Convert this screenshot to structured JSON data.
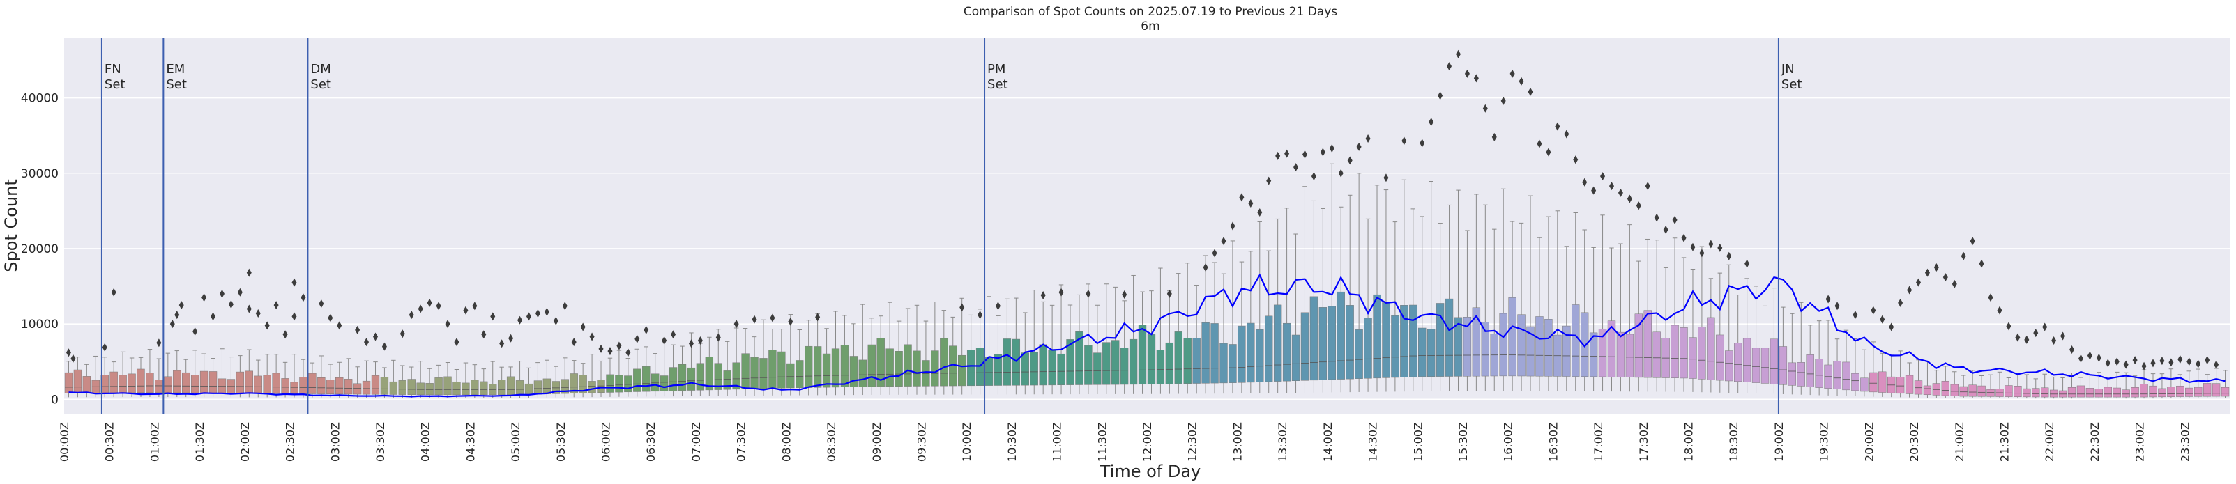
{
  "chart_data": {
    "type": "boxplot",
    "title": "Comparison of Spot Counts on 2025.07.19 to Previous 21 Days",
    "subtitle": "6m",
    "xlabel": "Time of Day",
    "ylabel": "Spot Count",
    "ylim": [
      -2000,
      48000
    ],
    "yticks": [
      0,
      10000,
      20000,
      30000,
      40000
    ],
    "ytick_labels": [
      "0",
      "10000",
      "20000",
      "30000",
      "40000"
    ],
    "xtick_labels": [
      "00:00Z",
      "00:30Z",
      "01:00Z",
      "01:30Z",
      "02:00Z",
      "02:30Z",
      "03:00Z",
      "03:30Z",
      "04:00Z",
      "04:30Z",
      "05:00Z",
      "05:30Z",
      "06:00Z",
      "06:30Z",
      "07:00Z",
      "07:30Z",
      "08:00Z",
      "08:30Z",
      "09:00Z",
      "09:30Z",
      "10:00Z",
      "10:30Z",
      "11:00Z",
      "11:30Z",
      "12:00Z",
      "12:30Z",
      "13:00Z",
      "13:30Z",
      "14:00Z",
      "14:30Z",
      "15:00Z",
      "15:30Z",
      "16:00Z",
      "16:30Z",
      "17:00Z",
      "17:30Z",
      "18:00Z",
      "18:30Z",
      "19:00Z",
      "19:30Z",
      "20:00Z",
      "20:30Z",
      "21:00Z",
      "21:30Z",
      "22:00Z",
      "22:30Z",
      "23:00Z",
      "23:30Z"
    ],
    "bins_per_hour": 10,
    "grid": true,
    "legend": "none",
    "colors": {
      "background": "#eaeaf2",
      "grid": "#ffffff",
      "line": "#0000ff",
      "marker_line": "#3d5fb0",
      "outlier": "#3c3c3c",
      "whisker": "#8a8a8a",
      "box_night": "#c98a86",
      "box_morning": "#97a27a",
      "box_day": "#6f9e6c",
      "box_midday": "#4e9a86",
      "box_afternoon": "#5f96b0",
      "box_evening": "#9fa6d6",
      "box_dusk": "#c79fd4",
      "box_late": "#d98fbf"
    },
    "markers": [
      {
        "label": "FN\nSet",
        "time": "00:25Z"
      },
      {
        "label": "EM\nSet",
        "time": "01:06Z"
      },
      {
        "label": "DM\nSet",
        "time": "02:42Z"
      },
      {
        "label": "PM\nSet",
        "time": "10:12Z"
      },
      {
        "label": "JN\nSet",
        "time": "19:00Z"
      }
    ],
    "today_line_hourly": [
      {
        "t": "00:00Z",
        "v": 900
      },
      {
        "t": "01:00Z",
        "v": 700
      },
      {
        "t": "02:00Z",
        "v": 800
      },
      {
        "t": "03:00Z",
        "v": 500
      },
      {
        "t": "04:00Z",
        "v": 400
      },
      {
        "t": "05:00Z",
        "v": 500
      },
      {
        "t": "06:00Z",
        "v": 1500
      },
      {
        "t": "07:00Z",
        "v": 2000
      },
      {
        "t": "08:00Z",
        "v": 1200
      },
      {
        "t": "09:00Z",
        "v": 2800
      },
      {
        "t": "10:00Z",
        "v": 4500
      },
      {
        "t": "11:00Z",
        "v": 7000
      },
      {
        "t": "12:00Z",
        "v": 9500
      },
      {
        "t": "13:00Z",
        "v": 14500
      },
      {
        "t": "14:00Z",
        "v": 15000
      },
      {
        "t": "15:00Z",
        "v": 11000
      },
      {
        "t": "16:00Z",
        "v": 9000
      },
      {
        "t": "17:00Z",
        "v": 8000
      },
      {
        "t": "18:00Z",
        "v": 12500
      },
      {
        "t": "19:00Z",
        "v": 15500
      },
      {
        "t": "20:00Z",
        "v": 7000
      },
      {
        "t": "21:00Z",
        "v": 4000
      },
      {
        "t": "22:00Z",
        "v": 3500
      },
      {
        "t": "23:00Z",
        "v": 2800
      },
      {
        "t": "23:54Z",
        "v": 2400
      }
    ],
    "median_hourly": [
      {
        "t": "00:00Z",
        "v": 1600
      },
      {
        "t": "01:00Z",
        "v": 1800
      },
      {
        "t": "02:00Z",
        "v": 1700
      },
      {
        "t": "03:00Z",
        "v": 1500
      },
      {
        "t": "04:00Z",
        "v": 1300
      },
      {
        "t": "05:00Z",
        "v": 1300
      },
      {
        "t": "06:00Z",
        "v": 1800
      },
      {
        "t": "07:00Z",
        "v": 2500
      },
      {
        "t": "08:00Z",
        "v": 3000
      },
      {
        "t": "09:00Z",
        "v": 3300
      },
      {
        "t": "10:00Z",
        "v": 3500
      },
      {
        "t": "11:00Z",
        "v": 3700
      },
      {
        "t": "12:00Z",
        "v": 3900
      },
      {
        "t": "13:00Z",
        "v": 4200
      },
      {
        "t": "14:00Z",
        "v": 5000
      },
      {
        "t": "15:00Z",
        "v": 5800
      },
      {
        "t": "16:00Z",
        "v": 5900
      },
      {
        "t": "17:00Z",
        "v": 5700
      },
      {
        "t": "18:00Z",
        "v": 5400
      },
      {
        "t": "19:00Z",
        "v": 4000
      },
      {
        "t": "20:00Z",
        "v": 2200
      },
      {
        "t": "21:00Z",
        "v": 1000
      },
      {
        "t": "22:00Z",
        "v": 700
      },
      {
        "t": "23:00Z",
        "v": 700
      },
      {
        "t": "23:54Z",
        "v": 800
      }
    ],
    "box_top_hourly": [
      {
        "t": "00:00Z",
        "v": 3200
      },
      {
        "t": "01:00Z",
        "v": 3400
      },
      {
        "t": "02:00Z",
        "v": 3300
      },
      {
        "t": "03:00Z",
        "v": 2700
      },
      {
        "t": "04:00Z",
        "v": 2500
      },
      {
        "t": "05:00Z",
        "v": 2400
      },
      {
        "t": "06:00Z",
        "v": 3000
      },
      {
        "t": "07:00Z",
        "v": 4500
      },
      {
        "t": "08:00Z",
        "v": 6000
      },
      {
        "t": "09:00Z",
        "v": 6800
      },
      {
        "t": "10:00Z",
        "v": 6500
      },
      {
        "t": "11:00Z",
        "v": 7000
      },
      {
        "t": "12:00Z",
        "v": 8000
      },
      {
        "t": "13:00Z",
        "v": 9000
      },
      {
        "t": "14:00Z",
        "v": 12500
      },
      {
        "t": "15:00Z",
        "v": 11500
      },
      {
        "t": "16:00Z",
        "v": 11000
      },
      {
        "t": "17:00Z",
        "v": 10000
      },
      {
        "t": "18:00Z",
        "v": 9500
      },
      {
        "t": "19:00Z",
        "v": 6500
      },
      {
        "t": "20:00Z",
        "v": 3500
      },
      {
        "t": "21:00Z",
        "v": 1800
      },
      {
        "t": "22:00Z",
        "v": 1400
      },
      {
        "t": "23:00Z",
        "v": 1600
      },
      {
        "t": "23:54Z",
        "v": 1800
      }
    ],
    "box_bottom_hourly": [
      {
        "t": "00:00Z",
        "v": 800
      },
      {
        "t": "01:00Z",
        "v": 900
      },
      {
        "t": "02:00Z",
        "v": 800
      },
      {
        "t": "03:00Z",
        "v": 700
      },
      {
        "t": "04:00Z",
        "v": 600
      },
      {
        "t": "05:00Z",
        "v": 600
      },
      {
        "t": "06:00Z",
        "v": 900
      },
      {
        "t": "07:00Z",
        "v": 1200
      },
      {
        "t": "08:00Z",
        "v": 1500
      },
      {
        "t": "09:00Z",
        "v": 1700
      },
      {
        "t": "10:00Z",
        "v": 1800
      },
      {
        "t": "11:00Z",
        "v": 1900
      },
      {
        "t": "12:00Z",
        "v": 2000
      },
      {
        "t": "13:00Z",
        "v": 2200
      },
      {
        "t": "14:00Z",
        "v": 2600
      },
      {
        "t": "15:00Z",
        "v": 3000
      },
      {
        "t": "16:00Z",
        "v": 3100
      },
      {
        "t": "17:00Z",
        "v": 3000
      },
      {
        "t": "18:00Z",
        "v": 2800
      },
      {
        "t": "19:00Z",
        "v": 2000
      },
      {
        "t": "20:00Z",
        "v": 1000
      },
      {
        "t": "21:00Z",
        "v": 400
      },
      {
        "t": "22:00Z",
        "v": 300
      },
      {
        "t": "23:00Z",
        "v": 300
      },
      {
        "t": "23:54Z",
        "v": 400
      }
    ],
    "whisker_top_hourly": [
      {
        "t": "00:00Z",
        "v": 5000
      },
      {
        "t": "01:00Z",
        "v": 6000
      },
      {
        "t": "02:00Z",
        "v": 6000
      },
      {
        "t": "03:00Z",
        "v": 5000
      },
      {
        "t": "04:00Z",
        "v": 4500
      },
      {
        "t": "05:00Z",
        "v": 4500
      },
      {
        "t": "06:00Z",
        "v": 5500
      },
      {
        "t": "07:00Z",
        "v": 8000
      },
      {
        "t": "08:00Z",
        "v": 10000
      },
      {
        "t": "09:00Z",
        "v": 11500
      },
      {
        "t": "10:00Z",
        "v": 12000
      },
      {
        "t": "11:00Z",
        "v": 13500
      },
      {
        "t": "12:00Z",
        "v": 15000
      },
      {
        "t": "13:00Z",
        "v": 19000
      },
      {
        "t": "14:00Z",
        "v": 28000
      },
      {
        "t": "15:00Z",
        "v": 26000
      },
      {
        "t": "16:00Z",
        "v": 25000
      },
      {
        "t": "17:00Z",
        "v": 22000
      },
      {
        "t": "18:00Z",
        "v": 19000
      },
      {
        "t": "19:00Z",
        "v": 13000
      },
      {
        "t": "20:00Z",
        "v": 7000
      },
      {
        "t": "21:00Z",
        "v": 3500
      },
      {
        "t": "22:00Z",
        "v": 3000
      },
      {
        "t": "23:00Z",
        "v": 3500
      },
      {
        "t": "23:54Z",
        "v": 3800
      }
    ],
    "outliers": [
      {
        "t": "00:00Z",
        "v": 6200
      },
      {
        "t": "00:03Z",
        "v": 5400
      },
      {
        "t": "00:30Z",
        "v": 14200
      },
      {
        "t": "00:24Z",
        "v": 6900
      },
      {
        "t": "01:00Z",
        "v": 7500
      },
      {
        "t": "01:09Z",
        "v": 10000
      },
      {
        "t": "01:12Z",
        "v": 11200
      },
      {
        "t": "01:15Z",
        "v": 12500
      },
      {
        "t": "01:24Z",
        "v": 9000
      },
      {
        "t": "01:30Z",
        "v": 13500
      },
      {
        "t": "01:36Z",
        "v": 11000
      },
      {
        "t": "01:42Z",
        "v": 14000
      },
      {
        "t": "01:48Z",
        "v": 12600
      },
      {
        "t": "01:54Z",
        "v": 14200
      },
      {
        "t": "02:00Z",
        "v": 16800
      },
      {
        "t": "02:00Z",
        "v": 12000
      },
      {
        "t": "02:06Z",
        "v": 11400
      },
      {
        "t": "02:12Z",
        "v": 9800
      },
      {
        "t": "02:18Z",
        "v": 12500
      },
      {
        "t": "02:24Z",
        "v": 8600
      },
      {
        "t": "02:30Z",
        "v": 15500
      },
      {
        "t": "02:30Z",
        "v": 11000
      },
      {
        "t": "02:36Z",
        "v": 13500
      },
      {
        "t": "02:48Z",
        "v": 12700
      },
      {
        "t": "02:54Z",
        "v": 10800
      },
      {
        "t": "03:00Z",
        "v": 9800
      },
      {
        "t": "03:12Z",
        "v": 9200
      },
      {
        "t": "03:18Z",
        "v": 7600
      },
      {
        "t": "03:24Z",
        "v": 8300
      },
      {
        "t": "03:30Z",
        "v": 7000
      },
      {
        "t": "03:42Z",
        "v": 8700
      },
      {
        "t": "03:48Z",
        "v": 11200
      },
      {
        "t": "03:54Z",
        "v": 12000
      },
      {
        "t": "04:00Z",
        "v": 12800
      },
      {
        "t": "04:06Z",
        "v": 12400
      },
      {
        "t": "04:12Z",
        "v": 10000
      },
      {
        "t": "04:18Z",
        "v": 7600
      },
      {
        "t": "04:24Z",
        "v": 11800
      },
      {
        "t": "04:30Z",
        "v": 12400
      },
      {
        "t": "04:36Z",
        "v": 8600
      },
      {
        "t": "04:42Z",
        "v": 11000
      },
      {
        "t": "04:48Z",
        "v": 7400
      },
      {
        "t": "04:54Z",
        "v": 8100
      },
      {
        "t": "05:00Z",
        "v": 10500
      },
      {
        "t": "05:06Z",
        "v": 11000
      },
      {
        "t": "05:12Z",
        "v": 11400
      },
      {
        "t": "05:18Z",
        "v": 11600
      },
      {
        "t": "05:24Z",
        "v": 10400
      },
      {
        "t": "05:30Z",
        "v": 12400
      },
      {
        "t": "05:36Z",
        "v": 7600
      },
      {
        "t": "05:42Z",
        "v": 9600
      },
      {
        "t": "05:48Z",
        "v": 8300
      },
      {
        "t": "05:54Z",
        "v": 6700
      },
      {
        "t": "06:00Z",
        "v": 6400
      },
      {
        "t": "06:06Z",
        "v": 7100
      },
      {
        "t": "06:12Z",
        "v": 6200
      },
      {
        "t": "06:18Z",
        "v": 8000
      },
      {
        "t": "06:24Z",
        "v": 9200
      },
      {
        "t": "06:36Z",
        "v": 7800
      },
      {
        "t": "06:42Z",
        "v": 8600
      },
      {
        "t": "06:54Z",
        "v": 7400
      },
      {
        "t": "07:00Z",
        "v": 7800
      },
      {
        "t": "07:12Z",
        "v": 8200
      },
      {
        "t": "07:24Z",
        "v": 10000
      },
      {
        "t": "07:36Z",
        "v": 10600
      },
      {
        "t": "07:48Z",
        "v": 10800
      },
      {
        "t": "08:00Z",
        "v": 10300
      },
      {
        "t": "08:18Z",
        "v": 10900
      },
      {
        "t": "09:54Z",
        "v": 12200
      },
      {
        "t": "10:06Z",
        "v": 11200
      },
      {
        "t": "10:18Z",
        "v": 12400
      },
      {
        "t": "10:48Z",
        "v": 13800
      },
      {
        "t": "11:00Z",
        "v": 14200
      },
      {
        "t": "11:18Z",
        "v": 14000
      },
      {
        "t": "11:42Z",
        "v": 13900
      },
      {
        "t": "12:12Z",
        "v": 14000
      },
      {
        "t": "12:36Z",
        "v": 17500
      },
      {
        "t": "12:42Z",
        "v": 19400
      },
      {
        "t": "12:48Z",
        "v": 21000
      },
      {
        "t": "12:54Z",
        "v": 23000
      },
      {
        "t": "13:00Z",
        "v": 26800
      },
      {
        "t": "13:06Z",
        "v": 26000
      },
      {
        "t": "13:12Z",
        "v": 24800
      },
      {
        "t": "13:18Z",
        "v": 29000
      },
      {
        "t": "13:24Z",
        "v": 32300
      },
      {
        "t": "13:30Z",
        "v": 32600
      },
      {
        "t": "13:36Z",
        "v": 30800
      },
      {
        "t": "13:42Z",
        "v": 32500
      },
      {
        "t": "13:48Z",
        "v": 29600
      },
      {
        "t": "13:54Z",
        "v": 32800
      },
      {
        "t": "14:00Z",
        "v": 33300
      },
      {
        "t": "14:06Z",
        "v": 30000
      },
      {
        "t": "14:12Z",
        "v": 31700
      },
      {
        "t": "14:18Z",
        "v": 33500
      },
      {
        "t": "14:24Z",
        "v": 34600
      },
      {
        "t": "14:36Z",
        "v": 29400
      },
      {
        "t": "14:48Z",
        "v": 34300
      },
      {
        "t": "15:00Z",
        "v": 34000
      },
      {
        "t": "15:06Z",
        "v": 36800
      },
      {
        "t": "15:12Z",
        "v": 40300
      },
      {
        "t": "15:18Z",
        "v": 44200
      },
      {
        "t": "15:24Z",
        "v": 45800
      },
      {
        "t": "15:30Z",
        "v": 43200
      },
      {
        "t": "15:36Z",
        "v": 42600
      },
      {
        "t": "15:42Z",
        "v": 38600
      },
      {
        "t": "15:48Z",
        "v": 34800
      },
      {
        "t": "15:54Z",
        "v": 39600
      },
      {
        "t": "16:00Z",
        "v": 43200
      },
      {
        "t": "16:06Z",
        "v": 42200
      },
      {
        "t": "16:12Z",
        "v": 40800
      },
      {
        "t": "16:18Z",
        "v": 33900
      },
      {
        "t": "16:24Z",
        "v": 32800
      },
      {
        "t": "16:30Z",
        "v": 36200
      },
      {
        "t": "16:36Z",
        "v": 35200
      },
      {
        "t": "16:42Z",
        "v": 31800
      },
      {
        "t": "16:48Z",
        "v": 28800
      },
      {
        "t": "16:54Z",
        "v": 27700
      },
      {
        "t": "17:00Z",
        "v": 29600
      },
      {
        "t": "17:06Z",
        "v": 28300
      },
      {
        "t": "17:12Z",
        "v": 27400
      },
      {
        "t": "17:18Z",
        "v": 26600
      },
      {
        "t": "17:24Z",
        "v": 25700
      },
      {
        "t": "17:30Z",
        "v": 28300
      },
      {
        "t": "17:36Z",
        "v": 24100
      },
      {
        "t": "17:42Z",
        "v": 22500
      },
      {
        "t": "17:48Z",
        "v": 23800
      },
      {
        "t": "17:54Z",
        "v": 21400
      },
      {
        "t": "18:00Z",
        "v": 20200
      },
      {
        "t": "18:06Z",
        "v": 19400
      },
      {
        "t": "18:12Z",
        "v": 20600
      },
      {
        "t": "18:18Z",
        "v": 20100
      },
      {
        "t": "18:24Z",
        "v": 19000
      },
      {
        "t": "18:36Z",
        "v": 18000
      },
      {
        "t": "19:30Z",
        "v": 13300
      },
      {
        "t": "19:36Z",
        "v": 12400
      },
      {
        "t": "19:48Z",
        "v": 11200
      },
      {
        "t": "20:00Z",
        "v": 11800
      },
      {
        "t": "20:06Z",
        "v": 10600
      },
      {
        "t": "20:12Z",
        "v": 9600
      },
      {
        "t": "20:18Z",
        "v": 12800
      },
      {
        "t": "20:24Z",
        "v": 14500
      },
      {
        "t": "20:30Z",
        "v": 15500
      },
      {
        "t": "20:36Z",
        "v": 16800
      },
      {
        "t": "20:42Z",
        "v": 17500
      },
      {
        "t": "20:48Z",
        "v": 16200
      },
      {
        "t": "20:54Z",
        "v": 15300
      },
      {
        "t": "21:00Z",
        "v": 19000
      },
      {
        "t": "21:06Z",
        "v": 21000
      },
      {
        "t": "21:12Z",
        "v": 18000
      },
      {
        "t": "21:18Z",
        "v": 13500
      },
      {
        "t": "21:24Z",
        "v": 11800
      },
      {
        "t": "21:30Z",
        "v": 9700
      },
      {
        "t": "21:36Z",
        "v": 8200
      },
      {
        "t": "21:42Z",
        "v": 7900
      },
      {
        "t": "21:48Z",
        "v": 8800
      },
      {
        "t": "21:54Z",
        "v": 9600
      },
      {
        "t": "22:00Z",
        "v": 7800
      },
      {
        "t": "22:06Z",
        "v": 8400
      },
      {
        "t": "22:12Z",
        "v": 6600
      },
      {
        "t": "22:18Z",
        "v": 5400
      },
      {
        "t": "22:24Z",
        "v": 5800
      },
      {
        "t": "22:30Z",
        "v": 5500
      },
      {
        "t": "22:36Z",
        "v": 4800
      },
      {
        "t": "22:42Z",
        "v": 5000
      },
      {
        "t": "22:48Z",
        "v": 4600
      },
      {
        "t": "22:54Z",
        "v": 5200
      },
      {
        "t": "23:00Z",
        "v": 4400
      },
      {
        "t": "23:06Z",
        "v": 4800
      },
      {
        "t": "23:12Z",
        "v": 5100
      },
      {
        "t": "23:18Z",
        "v": 4900
      },
      {
        "t": "23:24Z",
        "v": 5300
      },
      {
        "t": "23:30Z",
        "v": 5000
      },
      {
        "t": "23:36Z",
        "v": 4700
      },
      {
        "t": "23:42Z",
        "v": 5200
      },
      {
        "t": "23:48Z",
        "v": 4600
      }
    ]
  }
}
